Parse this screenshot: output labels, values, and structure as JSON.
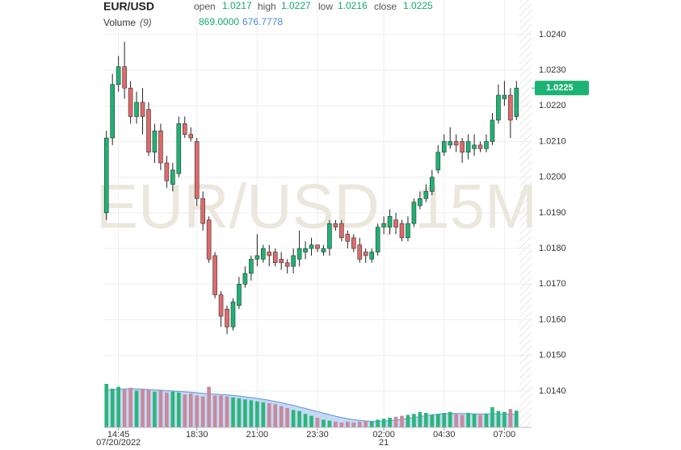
{
  "chart_data": {
    "type": "candlestick",
    "title": "EUR/USD",
    "watermark": "EUR/USD, 15M",
    "ohlc_labels": [
      "open",
      "high",
      "low",
      "close"
    ],
    "ohlc_values": [
      1.0217,
      1.0227,
      1.0216,
      1.0225
    ],
    "volume_title": "Volume",
    "volume_period": "(9)",
    "volume_value": {
      "value": 869,
      "label": "869.0000"
    },
    "volume_ma_value": {
      "value": 676.7778,
      "label": "676.7778"
    },
    "last_price": {
      "value": 1.0225,
      "label": "1.0225"
    },
    "categories": [
      null,
      null,
      "14:45",
      null,
      null,
      null,
      null,
      null,
      null,
      null,
      null,
      null,
      null,
      null,
      null,
      "18:30",
      null,
      null,
      null,
      null,
      null,
      null,
      null,
      null,
      null,
      "21:00",
      null,
      null,
      null,
      null,
      null,
      null,
      null,
      null,
      null,
      "23:30",
      null,
      null,
      null,
      null,
      null,
      null,
      null,
      null,
      null,
      null,
      "02:00",
      null,
      null,
      null,
      null,
      null,
      null,
      null,
      null,
      null,
      "04:30",
      null,
      null,
      null,
      null,
      null,
      null,
      null,
      null,
      null,
      "07:00",
      null,
      null
    ],
    "date_categories": [
      null,
      null,
      "07/20/2022",
      null,
      null,
      null,
      null,
      null,
      null,
      null,
      null,
      null,
      null,
      null,
      null,
      null,
      null,
      null,
      null,
      null,
      null,
      null,
      null,
      null,
      null,
      null,
      null,
      null,
      null,
      null,
      null,
      null,
      null,
      null,
      null,
      null,
      null,
      null,
      null,
      null,
      null,
      null,
      null,
      null,
      null,
      null,
      "21",
      null,
      null,
      null,
      null,
      null,
      null,
      null,
      null,
      null,
      null,
      null,
      null,
      null,
      null,
      null,
      null,
      null,
      null,
      null,
      null,
      null,
      null
    ],
    "open": [
      1.019,
      1.0211,
      1.0226,
      1.0231,
      1.0225,
      1.0217,
      1.0221,
      1.0219,
      1.0207,
      1.0213,
      1.0204,
      1.0198,
      1.0201,
      1.0215,
      1.0212,
      1.021,
      1.0194,
      1.0188,
      1.0178,
      1.0167,
      1.0163,
      1.0158,
      1.0164,
      1.017,
      1.0173,
      1.0177,
      1.0177,
      1.0179,
      1.0179,
      1.0177,
      1.0176,
      1.0175,
      1.0177,
      1.0179,
      1.018,
      1.0181,
      1.0179,
      1.018,
      1.0187,
      1.0187,
      1.0184,
      1.0183,
      1.0181,
      1.0179,
      1.0177,
      1.0179,
      1.0186,
      1.0186,
      1.0188,
      1.0187,
      1.0183,
      1.0187,
      1.0192,
      1.0194,
      1.0196,
      1.0202,
      1.0207,
      1.0209,
      1.021,
      1.021,
      1.0207,
      1.0208,
      1.0209,
      1.0208,
      1.021,
      1.0216,
      1.0222,
      1.0223,
      1.0217
    ],
    "high": [
      1.0213,
      1.0229,
      1.0234,
      1.0238,
      1.0227,
      1.0224,
      1.0225,
      1.0221,
      1.0215,
      1.0215,
      1.0206,
      1.0204,
      1.0217,
      1.0217,
      1.0214,
      1.0211,
      1.0196,
      1.0189,
      1.0179,
      1.0168,
      1.0164,
      1.0166,
      1.0172,
      1.0175,
      1.0178,
      1.0184,
      1.0181,
      1.0181,
      1.018,
      1.0179,
      1.0177,
      1.018,
      1.0185,
      1.0182,
      1.0183,
      1.0181,
      1.0181,
      1.0188,
      1.0188,
      1.0188,
      1.0185,
      1.0184,
      1.0183,
      1.018,
      1.018,
      1.0187,
      1.0189,
      1.0191,
      1.019,
      1.0188,
      1.0189,
      1.0194,
      1.0196,
      1.0198,
      1.0202,
      1.0209,
      1.0212,
      1.0214,
      1.0212,
      1.0211,
      1.0212,
      1.0212,
      1.021,
      1.0212,
      1.0218,
      1.0226,
      1.0227,
      1.0225,
      1.0227
    ],
    "low": [
      1.0188,
      1.0209,
      1.0224,
      1.0222,
      1.0215,
      1.0215,
      1.0212,
      1.0206,
      1.0204,
      1.0202,
      1.0197,
      1.0196,
      1.02,
      1.0211,
      1.021,
      1.0192,
      1.0185,
      1.0176,
      1.0166,
      1.0158,
      1.0156,
      1.0157,
      1.0163,
      1.0169,
      1.0171,
      1.0175,
      1.0176,
      1.0175,
      1.0175,
      1.0174,
      1.0173,
      1.0173,
      1.0175,
      1.0177,
      1.0178,
      1.0179,
      1.0178,
      1.0178,
      1.0185,
      1.0182,
      1.018,
      1.0179,
      1.0176,
      1.0176,
      1.0176,
      1.0178,
      1.0184,
      1.0184,
      1.0184,
      1.0182,
      1.0182,
      1.0186,
      1.0191,
      1.0193,
      1.0195,
      1.0201,
      1.0206,
      1.0208,
      1.0207,
      1.0204,
      1.0205,
      1.0206,
      1.0207,
      1.0207,
      1.0209,
      1.0215,
      1.022,
      1.0211,
      1.0216
    ],
    "close": [
      1.0211,
      1.0226,
      1.0231,
      1.0225,
      1.0217,
      1.0221,
      1.0217,
      1.0207,
      1.0213,
      1.0204,
      1.0199,
      1.0202,
      1.0215,
      1.0212,
      1.0211,
      1.0194,
      1.0187,
      1.0177,
      1.0167,
      1.0161,
      1.0158,
      1.0165,
      1.017,
      1.0173,
      1.0177,
      1.0178,
      1.018,
      1.0178,
      1.0176,
      1.0176,
      1.0175,
      1.0178,
      1.018,
      1.018,
      1.0181,
      1.018,
      1.018,
      1.0187,
      1.0186,
      1.0183,
      1.0182,
      1.018,
      1.0177,
      1.0178,
      1.0179,
      1.0186,
      1.0187,
      1.0189,
      1.0186,
      1.0183,
      1.0187,
      1.0193,
      1.0194,
      1.0196,
      1.02,
      1.0207,
      1.021,
      1.021,
      1.0209,
      1.0207,
      1.021,
      1.0209,
      1.0208,
      1.021,
      1.0216,
      1.0223,
      1.0223,
      1.0216,
      1.0225
    ],
    "volume": [
      2250,
      2000,
      2100,
      1950,
      2050,
      1900,
      2000,
      1950,
      1850,
      1900,
      1800,
      1850,
      1800,
      1700,
      1750,
      1650,
      1600,
      2100,
      1650,
      1650,
      1600,
      1550,
      1500,
      1450,
      1400,
      1350,
      1300,
      1250,
      1200,
      1100,
      1000,
      900,
      850,
      700,
      600,
      500,
      400,
      350,
      300,
      250,
      300,
      250,
      300,
      350,
      300,
      400,
      450,
      500,
      550,
      600,
      650,
      700,
      800,
      750,
      650,
      700,
      750,
      800,
      700,
      650,
      750,
      700,
      650,
      700,
      1050,
      850,
      800,
      950,
      869
    ],
    "volume_ma": [
      1950,
      1960,
      1980,
      1990,
      2000,
      1990,
      1980,
      1960,
      1940,
      1920,
      1900,
      1880,
      1860,
      1840,
      1820,
      1790,
      1760,
      1740,
      1720,
      1700,
      1680,
      1650,
      1620,
      1580,
      1540,
      1500,
      1450,
      1400,
      1340,
      1280,
      1210,
      1140,
      1060,
      980,
      900,
      820,
      740,
      660,
      580,
      510,
      450,
      400,
      370,
      340,
      320,
      320,
      330,
      350,
      380,
      420,
      460,
      510,
      560,
      610,
      650,
      690,
      710,
      720,
      720,
      720,
      710,
      700,
      700,
      700,
      710,
      700,
      690,
      680,
      676.7778
    ],
    "ylim": [
      1.01298,
      1.02497
    ],
    "yticks": [
      {
        "value": 1.014,
        "label": "1.0140"
      },
      {
        "value": 1.015,
        "label": "1.0150"
      },
      {
        "value": 1.016,
        "label": "1.0160"
      },
      {
        "value": 1.017,
        "label": "1.0170"
      },
      {
        "value": 1.018,
        "label": "1.0180"
      },
      {
        "value": 1.019,
        "label": "1.0190"
      },
      {
        "value": 1.02,
        "label": "1.0200"
      },
      {
        "value": 1.021,
        "label": "1.0210"
      },
      {
        "value": 1.022,
        "label": "1.0220"
      },
      {
        "value": 1.023,
        "label": "1.0230"
      },
      {
        "value": 1.024,
        "label": "1.0240"
      }
    ],
    "volume_lim": [
      0,
      2500
    ],
    "grid": true,
    "up_color": "#1db374",
    "down_color": "#e06a6a",
    "volume_up_color": "#2cb57a",
    "volume_down_color": "#c68a9d",
    "ma_color": "#5b94d9",
    "ma_fill": "#b7d0f2"
  }
}
